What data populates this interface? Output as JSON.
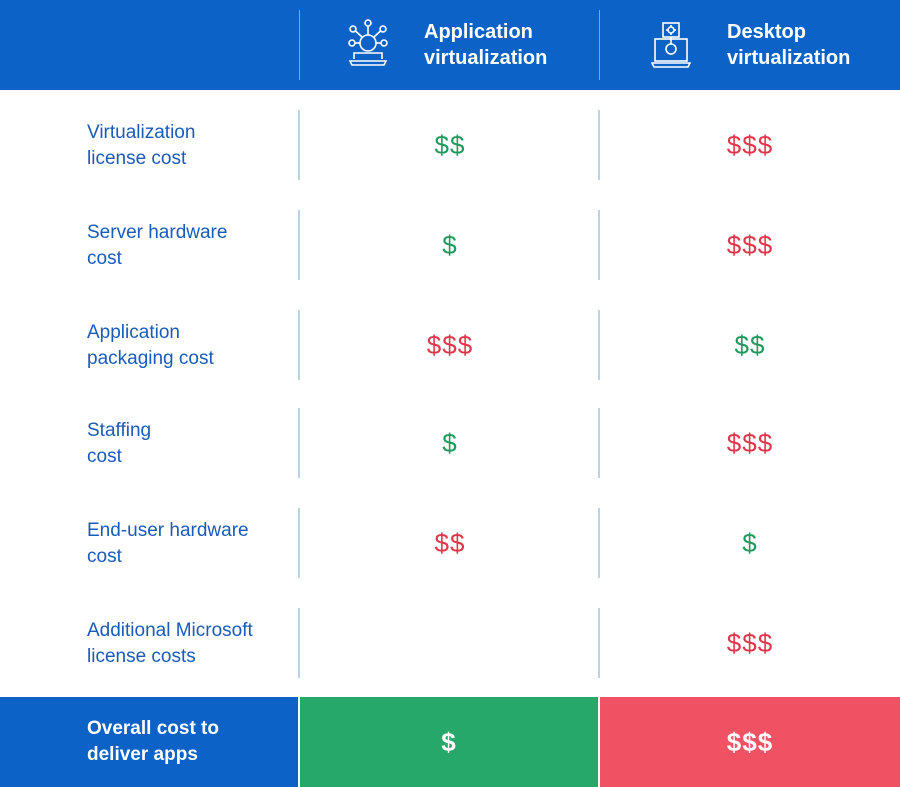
{
  "header": {
    "col1_title_line1": "Application",
    "col1_title_line2": "virtualization",
    "col1_icon": "app-network-icon",
    "col2_title_line1": "Desktop",
    "col2_title_line2": "virtualization",
    "col2_icon": "desktop-gear-icon"
  },
  "rows": [
    {
      "label_line1": "Virtualization",
      "label_line2": "license cost",
      "app": "$$",
      "app_status": "green",
      "desktop": "$$$",
      "desktop_status": "red"
    },
    {
      "label_line1": "Server hardware",
      "label_line2": "cost",
      "app": "$",
      "app_status": "green",
      "desktop": "$$$",
      "desktop_status": "red"
    },
    {
      "label_line1": "Application",
      "label_line2": "packaging cost",
      "app": "$$$",
      "app_status": "red",
      "desktop": "$$",
      "desktop_status": "green"
    },
    {
      "label_line1": "Staffing",
      "label_line2": "cost",
      "app": "$",
      "app_status": "green",
      "desktop": "$$$",
      "desktop_status": "red"
    },
    {
      "label_line1": "End-user hardware",
      "label_line2": "cost",
      "app": "$$",
      "app_status": "red",
      "desktop": "$",
      "desktop_status": "green"
    },
    {
      "label_line1": "Additional Microsoft",
      "label_line2": "license costs",
      "app": "",
      "app_status": "none",
      "desktop": "$$$",
      "desktop_status": "red"
    }
  ],
  "footer": {
    "label_line1": "Overall cost to",
    "label_line2": "deliver apps",
    "app": "$",
    "desktop": "$$$"
  },
  "colors": {
    "header_blue": "#0d62c7",
    "label_blue": "#1a5bb8",
    "green": "#1e9a5c",
    "red": "#e0364b",
    "footer_green": "#27a86b",
    "footer_red": "#f15263",
    "divider": "#b9d3ea"
  }
}
